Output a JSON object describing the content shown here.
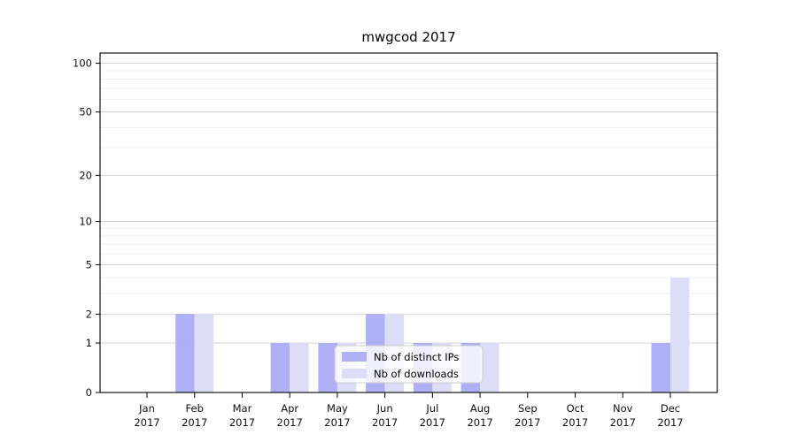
{
  "chart_data": {
    "type": "bar",
    "title": "mwgcod 2017",
    "categories": [
      "Jan",
      "Feb",
      "Mar",
      "Apr",
      "May",
      "Jun",
      "Jul",
      "Aug",
      "Sep",
      "Oct",
      "Nov",
      "Dec"
    ],
    "year": "2017",
    "series": [
      {
        "name": "Nb of distinct IPs",
        "color": "#a8a9f4",
        "values": [
          0,
          2,
          0,
          1,
          1,
          2,
          1,
          1,
          0,
          0,
          0,
          1
        ]
      },
      {
        "name": "Nb of downloads",
        "color": "#dadaf8",
        "values": [
          0,
          2,
          0,
          1,
          1,
          2,
          1,
          1,
          0,
          0,
          0,
          4
        ]
      }
    ],
    "y_axis": {
      "scale": "log1p",
      "ticks": [
        0,
        1,
        2,
        5,
        10,
        20,
        50,
        100
      ],
      "minor_ticks": [
        3,
        4,
        6,
        7,
        8,
        9,
        30,
        40,
        60,
        70,
        80,
        90
      ],
      "range_labels": [
        0,
        100
      ]
    },
    "grid": true,
    "legend": {
      "position": "lower-center",
      "entries": [
        "Nb of distinct IPs",
        "Nb of downloads"
      ]
    }
  }
}
